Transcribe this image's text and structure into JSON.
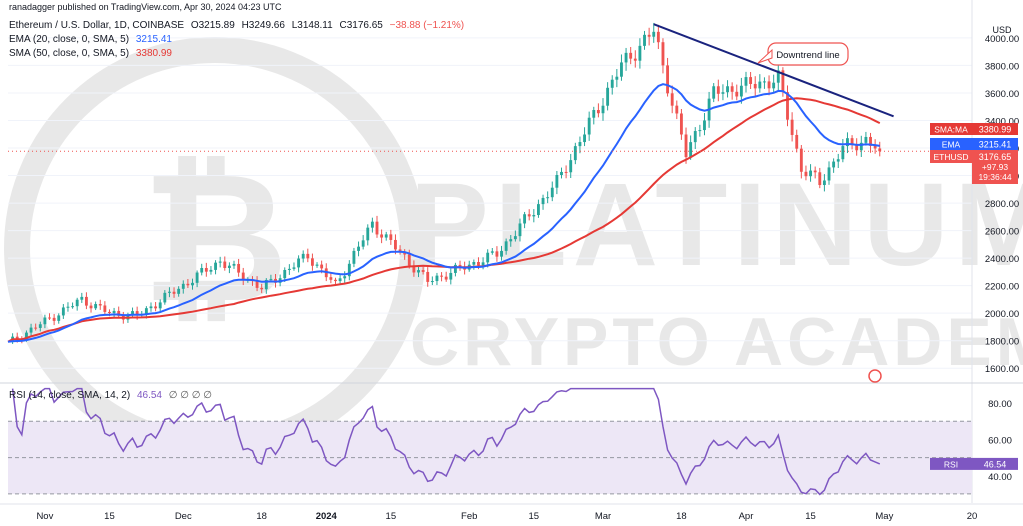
{
  "header": {
    "published": "ranadagger published on TradingView.com, Apr 30, 2024 04:23 UTC",
    "symbol": "Ethereum / U.S. Dollar, 1D, COINBASE",
    "ohlc": {
      "o": "O3215.89",
      "h": "H3249.66",
      "l": "L3148.11",
      "c": "C3176.65",
      "chg": "−38.88 (−1.21%)"
    },
    "ema_label": "EMA (20, close, 0, SMA, 5)",
    "ema_value": "3215.41",
    "sma_label": "SMA (50, close, 0, SMA, 5)",
    "sma_value": "3380.99",
    "rsi_label": "RSI (14, close, SMA, 14, 2)",
    "rsi_value": "46.54",
    "rsi_extra": "∅ ∅ ∅ ∅"
  },
  "currency": "USD",
  "watermark": {
    "line1": "PLATINUM",
    "line2": "CRYPTO ACADEMY"
  },
  "annotation": "Downtrend line",
  "badges": {
    "sma_label": "SMA:MA",
    "sma_value": "3380.99",
    "ema_label": "EMA",
    "ema_value": "3215.41",
    "eth_label": "ETHUSD",
    "eth_value": "3176.65",
    "eth_change": "+97.93",
    "eth_time": "19:36:44",
    "rsi_label": "RSI",
    "rsi_value": "46.54"
  },
  "colors": {
    "up": "#26a69a",
    "down": "#ef5350",
    "ema": "#2962ff",
    "sma": "#e53935",
    "trend": "#1a237e",
    "rsi": "#7e57c2",
    "rsi_band": "#ede7f6",
    "watermark": "#d6d6d6"
  },
  "chart_data": {
    "type": "candlestick",
    "price_axis": {
      "min": 1500,
      "max": 4130,
      "ticks": [
        1600,
        1800,
        2000,
        2200,
        2400,
        2600,
        2800,
        3000,
        3200,
        3400,
        3600,
        3800,
        4000
      ]
    },
    "rsi_axis": {
      "min": 25,
      "max": 90,
      "ticks": [
        40,
        60,
        80
      ],
      "upper_band": 70,
      "lower_band": 30
    },
    "x_axis": {
      "start": "2023-10-24",
      "end": "2024-05-20",
      "ticks": [
        {
          "date": "2023-11-01",
          "label": "Nov"
        },
        {
          "date": "2023-11-15",
          "label": "15"
        },
        {
          "date": "2023-12-01",
          "label": "Dec"
        },
        {
          "date": "2023-12-18",
          "label": "18"
        },
        {
          "date": "2024-01-01",
          "label": "2024"
        },
        {
          "date": "2024-01-15",
          "label": "15"
        },
        {
          "date": "2024-02-01",
          "label": "Feb"
        },
        {
          "date": "2024-02-15",
          "label": "15"
        },
        {
          "date": "2024-03-01",
          "label": "Mar"
        },
        {
          "date": "2024-03-18",
          "label": "18"
        },
        {
          "date": "2024-04-01",
          "label": "Apr"
        },
        {
          "date": "2024-04-15",
          "label": "15"
        },
        {
          "date": "2024-05-01",
          "label": "May"
        },
        {
          "date": "2024-05-20",
          "label": "20"
        }
      ]
    },
    "anchors": [
      [
        "2023-10-24",
        1780
      ],
      [
        "2023-11-09",
        2100
      ],
      [
        "2023-11-15",
        2000
      ],
      [
        "2023-11-21",
        1980
      ],
      [
        "2023-12-09",
        2380
      ],
      [
        "2023-12-18",
        2180
      ],
      [
        "2023-12-28",
        2420
      ],
      [
        "2024-01-03",
        2200
      ],
      [
        "2024-01-11",
        2650
      ],
      [
        "2024-01-23",
        2230
      ],
      [
        "2024-02-07",
        2430
      ],
      [
        "2024-02-20",
        2950
      ],
      [
        "2024-03-05",
        3800
      ],
      [
        "2024-03-12",
        4050
      ],
      [
        "2024-03-19",
        3150
      ],
      [
        "2024-03-25",
        3600
      ],
      [
        "2024-04-01",
        3650
      ],
      [
        "2024-04-08",
        3700
      ],
      [
        "2024-04-13",
        3050
      ],
      [
        "2024-04-17",
        2950
      ],
      [
        "2024-04-22",
        3200
      ],
      [
        "2024-04-27",
        3260
      ],
      [
        "2024-04-30",
        3176.65
      ]
    ],
    "last_close": 3176.65,
    "ema20_last": 3215.41,
    "sma50_last": 3380.99,
    "rsi_last": 46.54,
    "downtrend_line": [
      [
        "2024-03-12",
        4100
      ],
      [
        "2024-05-03",
        3430
      ]
    ]
  }
}
